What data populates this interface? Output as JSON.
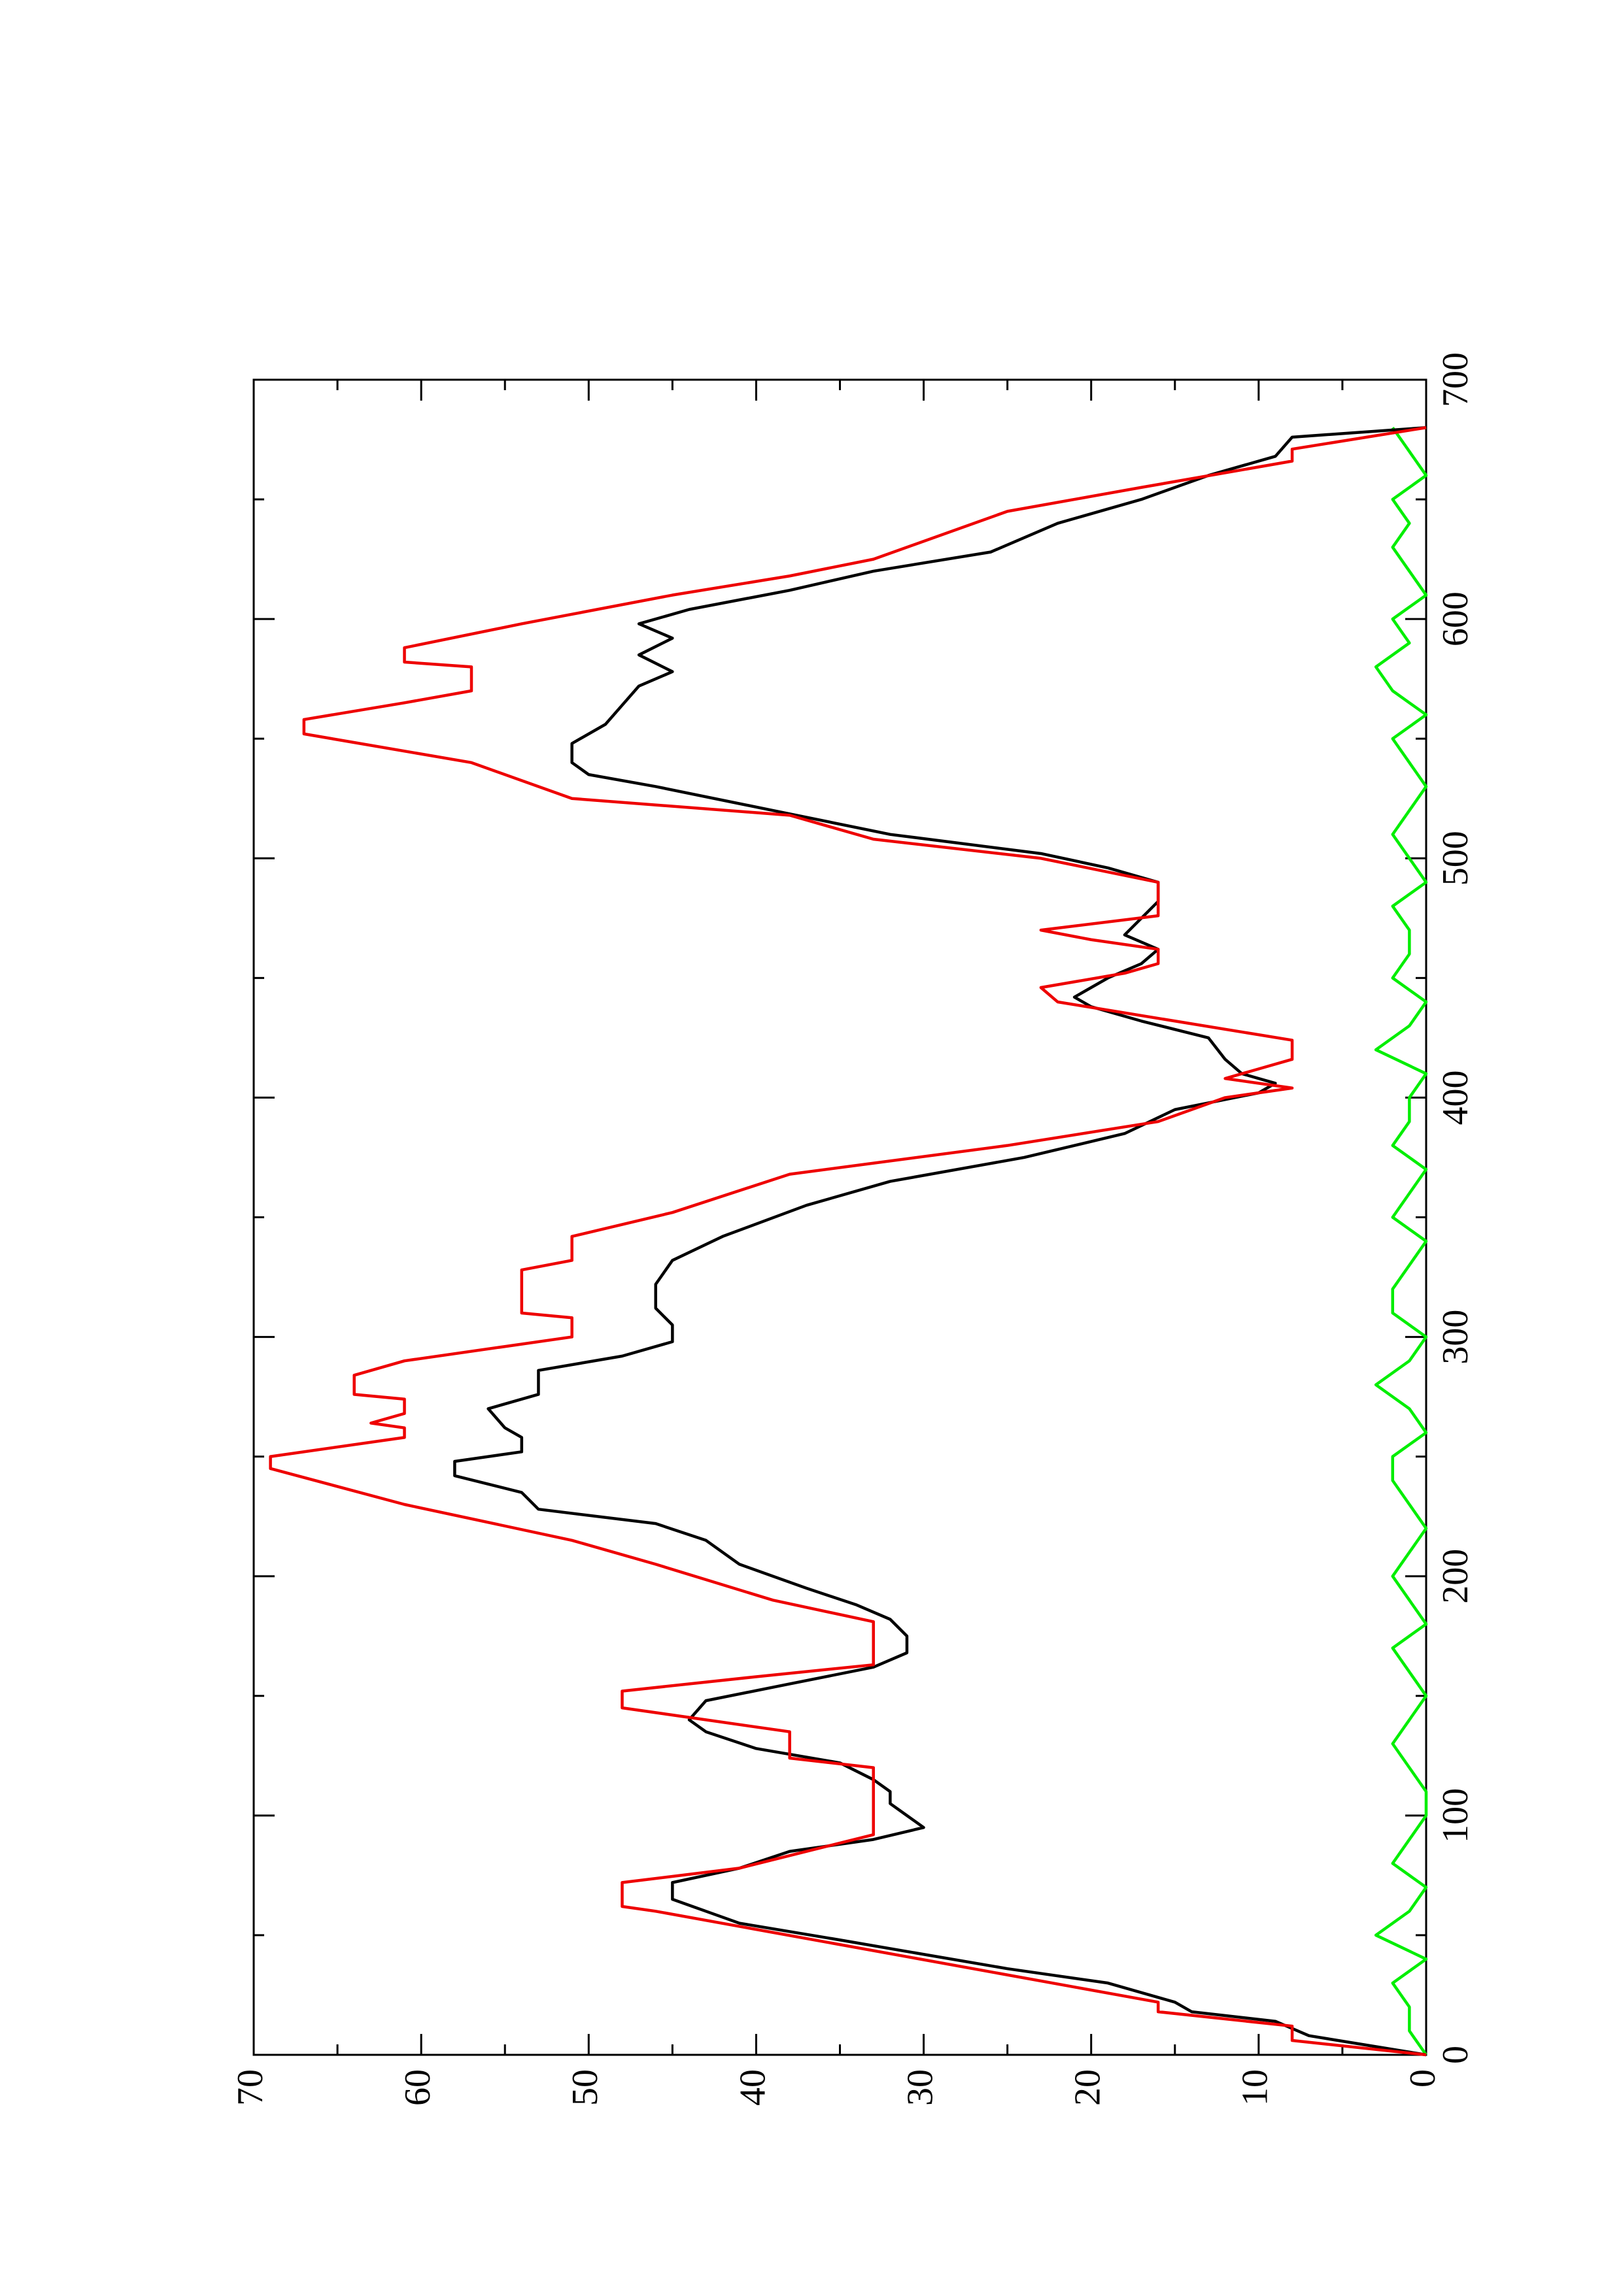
{
  "chart_data": {
    "type": "line",
    "xlim": [
      0,
      700
    ],
    "xticks": [
      0,
      100,
      200,
      300,
      400,
      500,
      600,
      700
    ],
    "ylim": [
      0,
      70
    ],
    "yticks": [
      0,
      10,
      20,
      30,
      40,
      50,
      60,
      70
    ],
    "rotated": true,
    "series": [
      {
        "color": "#00ee00",
        "x": [
          0,
          10,
          20,
          30,
          40,
          50,
          60,
          70,
          80,
          90,
          100,
          110,
          120,
          130,
          140,
          150,
          160,
          170,
          180,
          190,
          200,
          210,
          220,
          230,
          240,
          250,
          260,
          270,
          280,
          290,
          300,
          310,
          320,
          330,
          340,
          350,
          360,
          370,
          380,
          390,
          400,
          410,
          420,
          430,
          440,
          450,
          460,
          470,
          480,
          490,
          500,
          510,
          520,
          530,
          540,
          550,
          560,
          570,
          580,
          590,
          600,
          610,
          620,
          630,
          640,
          650,
          660,
          670,
          680
        ],
        "values": [
          0,
          1,
          1,
          2,
          0,
          3,
          1,
          0,
          2,
          1,
          0,
          0,
          1,
          2,
          1,
          0,
          1,
          2,
          0,
          1,
          2,
          1,
          0,
          1,
          2,
          2,
          0,
          1,
          3,
          1,
          0,
          2,
          2,
          1,
          0,
          2,
          1,
          0,
          2,
          1,
          1,
          0,
          3,
          1,
          0,
          2,
          1,
          1,
          2,
          0,
          1,
          2,
          1,
          0,
          1,
          2,
          0,
          2,
          3,
          1,
          2,
          0,
          1,
          2,
          1,
          2,
          0,
          1,
          2
        ]
      },
      {
        "color": "#000000",
        "x": [
          0,
          8,
          14,
          18,
          22,
          30,
          36,
          42,
          48,
          55,
          60,
          65,
          72,
          78,
          85,
          90,
          95,
          100,
          105,
          110,
          115,
          122,
          128,
          135,
          140,
          148,
          155,
          162,
          168,
          175,
          182,
          188,
          195,
          205,
          215,
          222,
          228,
          235,
          242,
          248,
          252,
          258,
          262,
          270,
          276,
          286,
          292,
          298,
          305,
          312,
          322,
          332,
          342,
          355,
          365,
          375,
          385,
          395,
          402,
          406,
          410,
          416,
          425,
          432,
          438,
          442,
          450,
          456,
          462,
          468,
          475,
          482,
          490,
          496,
          502,
          510,
          520,
          530,
          535,
          540,
          548,
          556,
          564,
          572,
          578,
          585,
          592,
          598,
          604,
          612,
          620,
          628,
          640,
          650,
          660,
          668,
          676,
          680
        ],
        "values": [
          0,
          7,
          9,
          14,
          15,
          19,
          25,
          30,
          35,
          41,
          43,
          45,
          45,
          41,
          38,
          33,
          30,
          31,
          32,
          32,
          33,
          35,
          40,
          43,
          44,
          43,
          38,
          33,
          31,
          31,
          32,
          34,
          37,
          41,
          43,
          46,
          53,
          54,
          58,
          58,
          54,
          54,
          55,
          56,
          53,
          53,
          48,
          45,
          45,
          46,
          46,
          45,
          42,
          37,
          32,
          24,
          18,
          15,
          10,
          9,
          11,
          12,
          13,
          17,
          20,
          21,
          19,
          17,
          16,
          18,
          17,
          16,
          16,
          19,
          23,
          32,
          39,
          46,
          50,
          51,
          51,
          49,
          48,
          47,
          45,
          47,
          45,
          47,
          44,
          38,
          33,
          26,
          22,
          17,
          13,
          9,
          8,
          0
        ]
      },
      {
        "color": "#ee0000",
        "x": [
          0,
          6,
          12,
          18,
          22,
          60,
          62,
          72,
          78,
          92,
          120,
          124,
          135,
          145,
          152,
          158,
          163,
          181,
          190,
          205,
          215,
          230,
          245,
          250,
          258,
          262,
          264,
          268,
          274,
          276,
          284,
          290,
          296,
          300,
          308,
          310,
          328,
          332,
          342,
          352,
          368,
          380,
          390,
          400,
          404,
          408,
          412,
          416,
          424,
          440,
          446,
          452,
          456,
          462,
          466,
          470,
          476,
          490,
          500,
          508,
          518,
          525,
          540,
          552,
          558,
          565,
          570,
          580,
          582,
          588,
          598,
          602,
          610,
          618,
          625,
          645,
          655,
          666,
          671,
          680
        ],
        "values": [
          0,
          8,
          8,
          16,
          16,
          46,
          48,
          48,
          41,
          33,
          33,
          38,
          38,
          48,
          48,
          40,
          33,
          33,
          39,
          46,
          51,
          61,
          69,
          69,
          61,
          61,
          63,
          61,
          61,
          64,
          64,
          61,
          55,
          51,
          51,
          54,
          54,
          51,
          51,
          45,
          38,
          25,
          16,
          12,
          8,
          12,
          10,
          8,
          8,
          22,
          23,
          18,
          16,
          16,
          20,
          23,
          16,
          16,
          23,
          33,
          38,
          51,
          57,
          67,
          67,
          61,
          57,
          57,
          61,
          61,
          54,
          51,
          45,
          38,
          33,
          25,
          17,
          8,
          8,
          0
        ]
      }
    ]
  }
}
